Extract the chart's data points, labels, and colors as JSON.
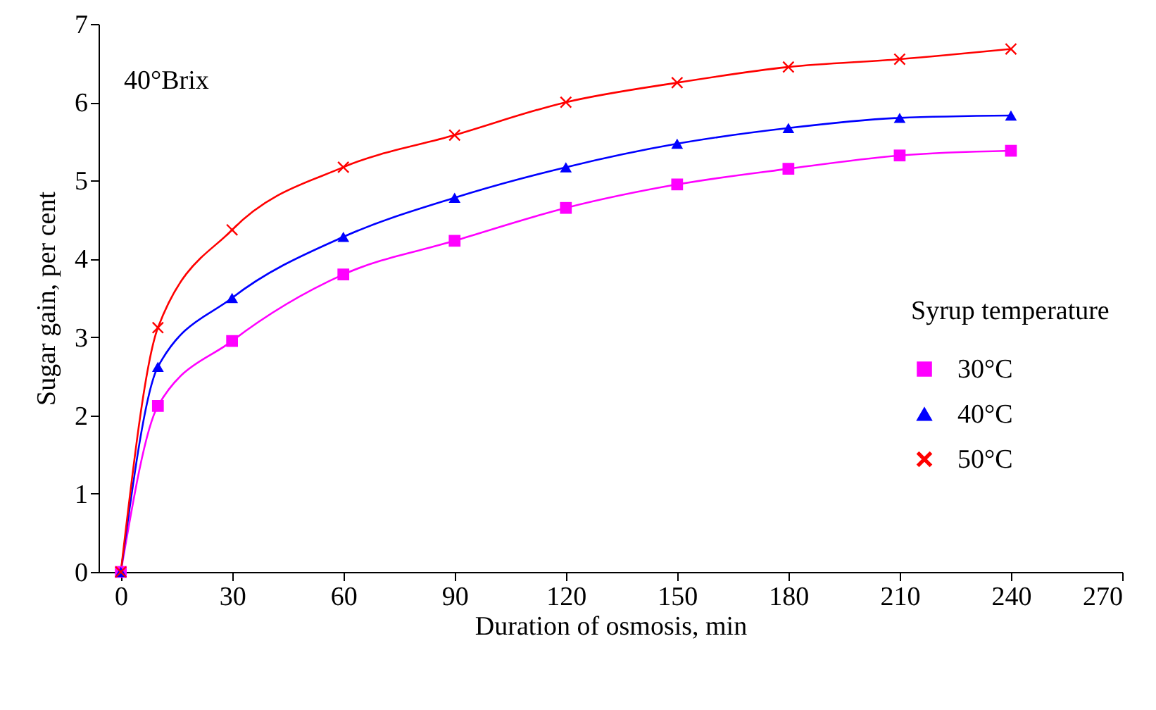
{
  "chart_data": {
    "type": "line",
    "xlabel": "Duration of osmosis, min",
    "ylabel": "Sugar gain, per cent",
    "legend_title": "Syrup temperature",
    "annotations": [
      "40°Brix"
    ],
    "x": [
      0,
      10,
      30,
      60,
      90,
      120,
      150,
      180,
      210,
      240
    ],
    "series": [
      {
        "name": "30°C",
        "color": "#ff00ff",
        "marker": "square",
        "values": [
          0,
          2.12,
          2.95,
          3.8,
          4.23,
          4.65,
          4.95,
          5.15,
          5.32,
          5.38
        ]
      },
      {
        "name": "40°C",
        "color": "#0000ff",
        "marker": "triangle",
        "values": [
          0,
          2.62,
          3.5,
          4.28,
          4.78,
          5.17,
          5.47,
          5.67,
          5.8,
          5.83
        ]
      },
      {
        "name": "50°C",
        "color": "#ff0000",
        "marker": "cross",
        "values": [
          0,
          3.12,
          4.37,
          5.17,
          5.58,
          6.0,
          6.25,
          6.45,
          6.55,
          6.68
        ]
      }
    ],
    "xlim": [
      -6,
      270
    ],
    "xticks": [
      0,
      30,
      60,
      90,
      120,
      150,
      180,
      210,
      240,
      270
    ],
    "ylim": [
      0,
      7
    ],
    "yticks": [
      0,
      1,
      2,
      3,
      4,
      5,
      6,
      7
    ],
    "grid": false,
    "legend": "right"
  }
}
